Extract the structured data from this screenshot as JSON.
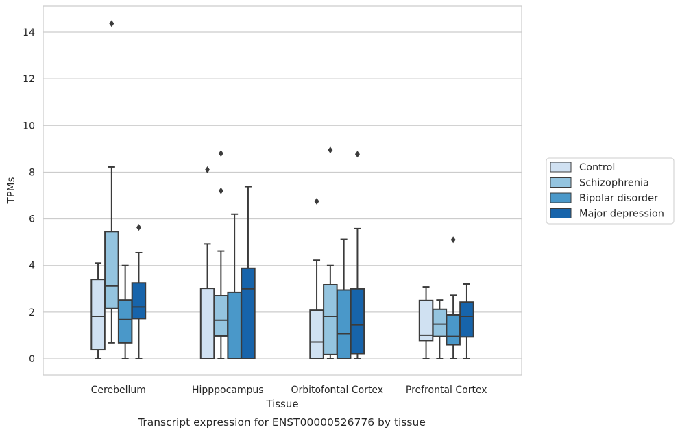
{
  "caption": "Transcript expression for ENST00000526776 by tissue",
  "chart_data": {
    "type": "box",
    "xlabel": "Tissue",
    "ylabel": "TPMs",
    "ylim": [
      -0.7,
      15.1
    ],
    "yticks": [
      0,
      2,
      4,
      6,
      8,
      10,
      12,
      14
    ],
    "grid": "horizontal",
    "legend_position": "right",
    "categories": [
      "Cerebellum",
      "Hipppocampus",
      "Orbitofontal Cortex",
      "Prefrontal Cortex"
    ],
    "series": [
      {
        "name": "Control",
        "color": "#d0e1f2",
        "boxes": [
          {
            "whislo": 0,
            "q1": 0.38,
            "med": 1.82,
            "q3": 3.4,
            "whishi": 4.1,
            "fliers": []
          },
          {
            "whislo": 0,
            "q1": 0,
            "med": 0,
            "q3": 3.02,
            "whishi": 4.92,
            "fliers": [
              8.1
            ]
          },
          {
            "whislo": 0,
            "q1": 0,
            "med": 0.72,
            "q3": 2.08,
            "whishi": 4.22,
            "fliers": [
              6.75
            ]
          },
          {
            "whislo": 0,
            "q1": 0.78,
            "med": 1.0,
            "q3": 2.5,
            "whishi": 3.08,
            "fliers": []
          }
        ]
      },
      {
        "name": "Schizophrenia",
        "color": "#94c4df",
        "boxes": [
          {
            "whislo": 0.68,
            "q1": 2.15,
            "med": 3.12,
            "q3": 5.45,
            "whishi": 8.22,
            "fliers": [
              14.37
            ]
          },
          {
            "whislo": 0,
            "q1": 0.97,
            "med": 1.65,
            "q3": 2.7,
            "whishi": 4.62,
            "fliers": [
              8.8,
              7.2
            ]
          },
          {
            "whislo": 0,
            "q1": 0.18,
            "med": 1.82,
            "q3": 3.17,
            "whishi": 4.0,
            "fliers": [
              8.95
            ]
          },
          {
            "whislo": 0,
            "q1": 0.95,
            "med": 1.48,
            "q3": 2.12,
            "whishi": 2.52,
            "fliers": []
          }
        ]
      },
      {
        "name": "Bipolar disorder",
        "color": "#4a98c9",
        "boxes": [
          {
            "whislo": 0,
            "q1": 0.68,
            "med": 1.68,
            "q3": 2.52,
            "whishi": 4.0,
            "fliers": []
          },
          {
            "whislo": 0,
            "q1": 0,
            "med": 0,
            "q3": 2.85,
            "whishi": 6.2,
            "fliers": []
          },
          {
            "whislo": 0,
            "q1": 0,
            "med": 1.07,
            "q3": 2.95,
            "whishi": 5.12,
            "fliers": []
          },
          {
            "whislo": 0,
            "q1": 0.6,
            "med": 0.95,
            "q3": 1.88,
            "whishi": 2.72,
            "fliers": [
              5.1
            ]
          }
        ]
      },
      {
        "name": "Major depression",
        "color": "#1764ab",
        "boxes": [
          {
            "whislo": 0,
            "q1": 1.72,
            "med": 2.22,
            "q3": 3.25,
            "whishi": 4.55,
            "fliers": [
              5.63
            ]
          },
          {
            "whislo": 0,
            "q1": 0,
            "med": 3.0,
            "q3": 3.88,
            "whishi": 7.38,
            "fliers": []
          },
          {
            "whislo": 0,
            "q1": 0.22,
            "med": 1.45,
            "q3": 3.0,
            "whishi": 5.58,
            "fliers": [
              8.77
            ]
          },
          {
            "whislo": 0,
            "q1": 0.93,
            "med": 1.82,
            "q3": 2.43,
            "whishi": 3.2,
            "fliers": []
          }
        ]
      }
    ]
  }
}
